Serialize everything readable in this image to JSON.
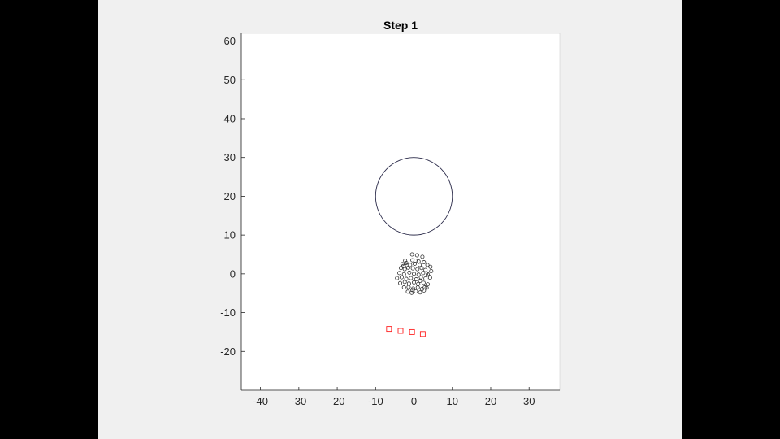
{
  "chart_data": {
    "type": "scatter",
    "title": "Step 1",
    "xlabel": "",
    "ylabel": "",
    "xlim": [
      -45,
      38
    ],
    "ylim": [
      -30,
      62
    ],
    "xticks": [
      -40,
      -30,
      -20,
      -10,
      0,
      10,
      20,
      30
    ],
    "yticks": [
      -20,
      -10,
      0,
      10,
      20,
      30,
      40,
      50,
      60
    ],
    "grid": false,
    "obstacle_circle": {
      "center": [
        0,
        20
      ],
      "radius": 10,
      "color": "#2b2b4a"
    },
    "particles": {
      "marker": "circle",
      "color": "#333333",
      "points": [
        [
          -0.5,
          5
        ],
        [
          0.8,
          4.8
        ],
        [
          2.2,
          4.4
        ],
        [
          -2.3,
          3.4
        ],
        [
          -0.4,
          3.5
        ],
        [
          0.4,
          3.4
        ],
        [
          1.2,
          3.2
        ],
        [
          2.6,
          3.0
        ],
        [
          -3.0,
          2.5
        ],
        [
          -2.0,
          2.8
        ],
        [
          -1.0,
          2.3
        ],
        [
          0.2,
          2.6
        ],
        [
          1.5,
          2.3
        ],
        [
          3.5,
          2.3
        ],
        [
          4.3,
          1.8
        ],
        [
          -3.4,
          1.5
        ],
        [
          -2.4,
          1.2
        ],
        [
          -1.5,
          1.6
        ],
        [
          -0.3,
          1.4
        ],
        [
          0.9,
          1.2
        ],
        [
          2.0,
          1.5
        ],
        [
          3.0,
          1.0
        ],
        [
          4.5,
          0.7
        ],
        [
          -3.8,
          0.2
        ],
        [
          -2.6,
          -0.1
        ],
        [
          -1.2,
          0.3
        ],
        [
          0.0,
          0.0
        ],
        [
          1.2,
          -0.2
        ],
        [
          2.4,
          0.2
        ],
        [
          3.6,
          -0.2
        ],
        [
          -4.4,
          -1.1
        ],
        [
          -3.2,
          -0.9
        ],
        [
          -2.0,
          -1.3
        ],
        [
          -0.8,
          -1.1
        ],
        [
          0.6,
          -1.4
        ],
        [
          1.8,
          -0.9
        ],
        [
          3.0,
          -1.2
        ],
        [
          4.2,
          -1.0
        ],
        [
          -3.6,
          -2.4
        ],
        [
          -2.4,
          -2.1
        ],
        [
          -1.3,
          -2.5
        ],
        [
          0.0,
          -2.2
        ],
        [
          1.1,
          -2.6
        ],
        [
          2.5,
          -2.3
        ],
        [
          3.6,
          -2.7
        ],
        [
          -2.6,
          -3.5
        ],
        [
          -1.4,
          -3.4
        ],
        [
          -0.2,
          -3.8
        ],
        [
          1.0,
          -3.5
        ],
        [
          2.1,
          -3.9
        ],
        [
          3.3,
          -3.6
        ],
        [
          -1.6,
          -4.6
        ],
        [
          -0.6,
          -4.9
        ],
        [
          0.5,
          -4.5
        ],
        [
          1.6,
          -4.8
        ],
        [
          2.8,
          -3.5
        ],
        [
          -2.8,
          2.0
        ],
        [
          1.6,
          -1.8
        ],
        [
          -1.8,
          2.2
        ],
        [
          4.0,
          0.0
        ],
        [
          -0.4,
          -4.2
        ],
        [
          2.6,
          -4.3
        ]
      ]
    },
    "markers": {
      "marker": "square",
      "color": "#ff2020",
      "points": [
        [
          -6.5,
          -14.2
        ],
        [
          -3.5,
          -14.7
        ],
        [
          -0.5,
          -15.0
        ],
        [
          2.3,
          -15.5
        ]
      ]
    }
  }
}
